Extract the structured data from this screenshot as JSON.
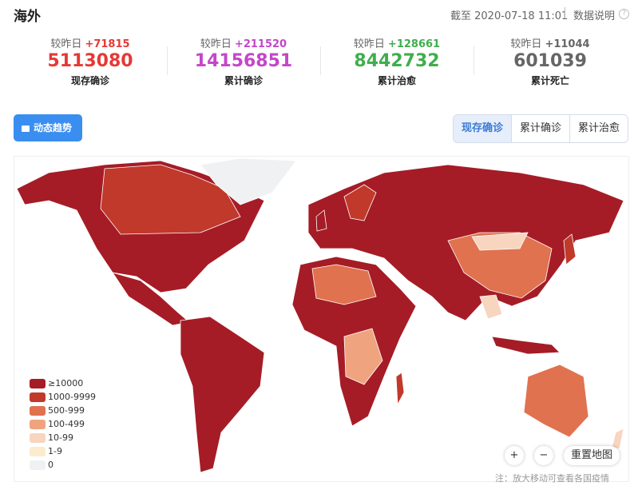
{
  "header": {
    "title": "海外",
    "timestamp": "截至 2020-07-18 11:01",
    "help": "数据说明"
  },
  "stats": [
    {
      "delta_label": "较昨日",
      "delta": "+71815",
      "value": "5113080",
      "label": "现存确诊",
      "color": "#e53935"
    },
    {
      "delta_label": "较昨日",
      "delta": "+211520",
      "value": "14156851",
      "label": "累计确诊",
      "color": "#c446c9"
    },
    {
      "delta_label": "较昨日",
      "delta": "+128661",
      "value": "8442732",
      "label": "累计治愈",
      "color": "#3fae4d"
    },
    {
      "delta_label": "较昨日",
      "delta": "+11044",
      "value": "601039",
      "label": "累计死亡",
      "color": "#666666"
    }
  ],
  "trend_button": "动态趋势",
  "tabs": [
    "现存确诊",
    "累计确诊",
    "累计治愈"
  ],
  "legend": [
    {
      "label": "≥10000",
      "color": "#a51c26"
    },
    {
      "label": "1000-9999",
      "color": "#c0392b"
    },
    {
      "label": "500-999",
      "color": "#e0724f"
    },
    {
      "label": "100-499",
      "color": "#efa47f"
    },
    {
      "label": "10-99",
      "color": "#f7d5bf"
    },
    {
      "label": "1-9",
      "color": "#fbeccd"
    },
    {
      "label": "0",
      "color": "#f0f1f3"
    }
  ],
  "controls": {
    "zoom_in": "+",
    "zoom_out": "−",
    "reset": "重置地图"
  },
  "note": "注：放大移动可查看各国疫情"
}
